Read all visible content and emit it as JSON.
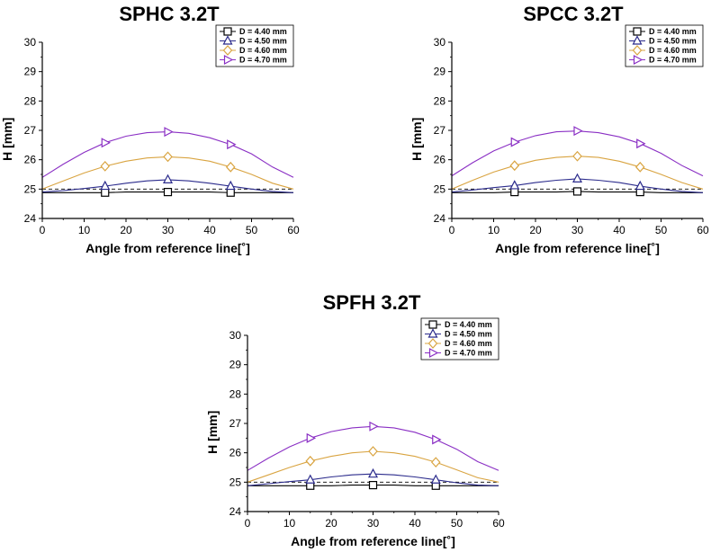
{
  "chart_data": [
    {
      "type": "line",
      "title": "SPHC 3.2T",
      "xlabel": "Angle from reference line[˚]",
      "ylabel": "H [mm]",
      "xlim": [
        0,
        60
      ],
      "ylim": [
        24,
        30
      ],
      "xticks": [
        0,
        10,
        20,
        30,
        40,
        50,
        60
      ],
      "yticks": [
        24,
        25,
        26,
        27,
        28,
        29,
        30
      ],
      "legend_position": "top-right",
      "reference_line": {
        "y": 25,
        "style": "dashed"
      },
      "series": [
        {
          "name": "D = 4.40 mm",
          "color": "#000000",
          "marker": "square",
          "x": [
            0,
            5,
            10,
            15,
            20,
            25,
            30,
            35,
            40,
            45,
            50,
            55,
            60
          ],
          "y": [
            24.88,
            24.88,
            24.88,
            24.88,
            24.9,
            24.9,
            24.9,
            24.9,
            24.9,
            24.88,
            24.88,
            24.88,
            24.88
          ],
          "marker_x": [
            15,
            30,
            45
          ]
        },
        {
          "name": "D = 4.50 mm",
          "color": "#2b2b8c",
          "marker": "triangle-up",
          "x": [
            0,
            5,
            10,
            15,
            20,
            25,
            30,
            35,
            40,
            45,
            50,
            55,
            60
          ],
          "y": [
            24.9,
            24.95,
            25.02,
            25.1,
            25.2,
            25.28,
            25.32,
            25.28,
            25.2,
            25.1,
            25.0,
            24.92,
            24.88
          ],
          "marker_x": [
            15,
            30,
            45
          ]
        },
        {
          "name": "D = 4.60 mm",
          "color": "#d9a441",
          "marker": "diamond",
          "x": [
            0,
            5,
            10,
            15,
            20,
            25,
            30,
            35,
            40,
            45,
            50,
            55,
            60
          ],
          "y": [
            25.0,
            25.28,
            25.55,
            25.78,
            25.95,
            26.06,
            26.1,
            26.06,
            25.95,
            25.75,
            25.5,
            25.2,
            25.0
          ],
          "marker_x": [
            15,
            30,
            45
          ]
        },
        {
          "name": "D = 4.70 mm",
          "color": "#8a2fc4",
          "marker": "triangle-right",
          "x": [
            0,
            5,
            10,
            15,
            20,
            25,
            30,
            35,
            40,
            45,
            50,
            55,
            60
          ],
          "y": [
            25.4,
            25.85,
            26.25,
            26.58,
            26.8,
            26.92,
            26.95,
            26.9,
            26.75,
            26.52,
            26.2,
            25.75,
            25.4
          ],
          "marker_x": [
            15,
            30,
            45
          ]
        }
      ]
    },
    {
      "type": "line",
      "title": "SPCC 3.2T",
      "xlabel": "Angle from reference line[˚]",
      "ylabel": "H [mm]",
      "xlim": [
        0,
        60
      ],
      "ylim": [
        24,
        30
      ],
      "xticks": [
        0,
        10,
        20,
        30,
        40,
        50,
        60
      ],
      "yticks": [
        24,
        25,
        26,
        27,
        28,
        29,
        30
      ],
      "legend_position": "top-right",
      "reference_line": {
        "y": 25,
        "style": "dashed"
      },
      "series": [
        {
          "name": "D = 4.40 mm",
          "color": "#000000",
          "marker": "square",
          "x": [
            0,
            5,
            10,
            15,
            20,
            25,
            30,
            35,
            40,
            45,
            50,
            55,
            60
          ],
          "y": [
            24.88,
            24.88,
            24.88,
            24.9,
            24.9,
            24.9,
            24.92,
            24.9,
            24.9,
            24.9,
            24.88,
            24.88,
            24.88
          ],
          "marker_x": [
            15,
            30,
            45
          ]
        },
        {
          "name": "D = 4.50 mm",
          "color": "#2b2b8c",
          "marker": "triangle-up",
          "x": [
            0,
            5,
            10,
            15,
            20,
            25,
            30,
            35,
            40,
            45,
            50,
            55,
            60
          ],
          "y": [
            24.9,
            24.97,
            25.05,
            25.12,
            25.22,
            25.3,
            25.35,
            25.3,
            25.22,
            25.1,
            25.0,
            24.92,
            24.88
          ],
          "marker_x": [
            15,
            30,
            45
          ]
        },
        {
          "name": "D = 4.60 mm",
          "color": "#d9a441",
          "marker": "diamond",
          "x": [
            0,
            5,
            10,
            15,
            20,
            25,
            30,
            35,
            40,
            45,
            50,
            55,
            60
          ],
          "y": [
            25.0,
            25.3,
            25.58,
            25.8,
            25.98,
            26.08,
            26.12,
            26.08,
            25.95,
            25.75,
            25.5,
            25.22,
            25.0
          ],
          "marker_x": [
            15,
            30,
            45
          ]
        },
        {
          "name": "D = 4.70 mm",
          "color": "#8a2fc4",
          "marker": "triangle-right",
          "x": [
            0,
            5,
            10,
            15,
            20,
            25,
            30,
            35,
            40,
            45,
            50,
            55,
            60
          ],
          "y": [
            25.45,
            25.9,
            26.3,
            26.6,
            26.82,
            26.95,
            26.98,
            26.92,
            26.78,
            26.55,
            26.22,
            25.8,
            25.45
          ],
          "marker_x": [
            15,
            30,
            45
          ]
        }
      ]
    },
    {
      "type": "line",
      "title": "SPFH 3.2T",
      "xlabel": "Angle from reference line[˚]",
      "ylabel": "H [mm]",
      "xlim": [
        0,
        60
      ],
      "ylim": [
        24,
        30
      ],
      "xticks": [
        0,
        10,
        20,
        30,
        40,
        50,
        60
      ],
      "yticks": [
        24,
        25,
        26,
        27,
        28,
        29,
        30
      ],
      "legend_position": "top-right",
      "reference_line": {
        "y": 25,
        "style": "dashed"
      },
      "series": [
        {
          "name": "D = 4.40 mm",
          "color": "#000000",
          "marker": "square",
          "x": [
            0,
            5,
            10,
            15,
            20,
            25,
            30,
            35,
            40,
            45,
            50,
            55,
            60
          ],
          "y": [
            24.88,
            24.88,
            24.88,
            24.88,
            24.88,
            24.9,
            24.9,
            24.9,
            24.88,
            24.88,
            24.88,
            24.88,
            24.88
          ],
          "marker_x": [
            15,
            30,
            45
          ]
        },
        {
          "name": "D = 4.50 mm",
          "color": "#2b2b8c",
          "marker": "triangle-up",
          "x": [
            0,
            5,
            10,
            15,
            20,
            25,
            30,
            35,
            40,
            45,
            50,
            55,
            60
          ],
          "y": [
            24.88,
            24.95,
            25.02,
            25.08,
            25.18,
            25.25,
            25.28,
            25.25,
            25.18,
            25.08,
            24.98,
            24.9,
            24.88
          ],
          "marker_x": [
            15,
            30,
            45
          ]
        },
        {
          "name": "D = 4.60 mm",
          "color": "#d9a441",
          "marker": "diamond",
          "x": [
            0,
            5,
            10,
            15,
            20,
            25,
            30,
            35,
            40,
            45,
            50,
            55,
            60
          ],
          "y": [
            25.0,
            25.25,
            25.5,
            25.72,
            25.88,
            26.0,
            26.05,
            26.0,
            25.88,
            25.68,
            25.42,
            25.15,
            25.0
          ],
          "marker_x": [
            15,
            30,
            45
          ]
        },
        {
          "name": "D = 4.70 mm",
          "color": "#8a2fc4",
          "marker": "triangle-right",
          "x": [
            0,
            5,
            10,
            15,
            20,
            25,
            30,
            35,
            40,
            45,
            50,
            55,
            60
          ],
          "y": [
            25.4,
            25.82,
            26.2,
            26.5,
            26.72,
            26.85,
            26.9,
            26.85,
            26.7,
            26.45,
            26.12,
            25.7,
            25.4
          ],
          "marker_x": [
            15,
            30,
            45
          ]
        }
      ]
    }
  ]
}
